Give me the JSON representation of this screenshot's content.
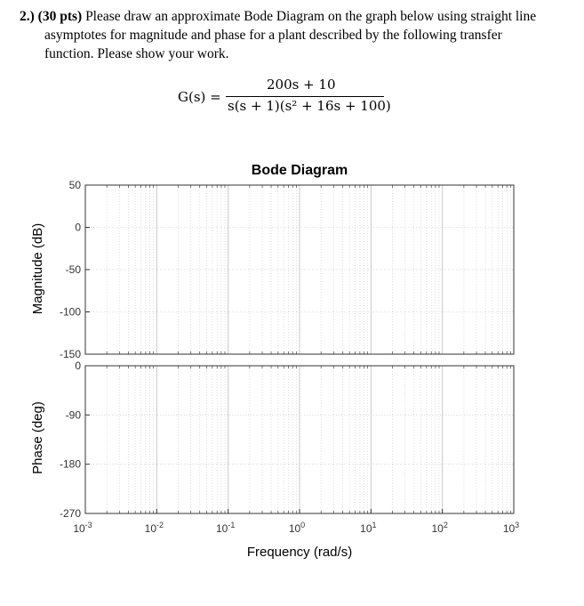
{
  "problem": {
    "number": "2.)",
    "points": "(30 pts)",
    "line1": "Please draw an approximate Bode Diagram on the graph below using straight line",
    "line2": "asymptotes for magnitude and phase for a plant described by the following transfer",
    "line3": "function. Please show your work."
  },
  "equation": {
    "lhs": "G(s) =",
    "numerator": "200s + 10",
    "denominator": "s(s + 1)(s² + 16s + 100)"
  },
  "chart_data": {
    "type": "line",
    "title": "Bode Diagram",
    "xlabel": "Frequency (rad/s)",
    "x_scale": "log",
    "xlim": [
      0.001,
      1000
    ],
    "x_ticks": [
      {
        "base": "10",
        "exp": "-3"
      },
      {
        "base": "10",
        "exp": "-2"
      },
      {
        "base": "10",
        "exp": "-1"
      },
      {
        "base": "10",
        "exp": "0"
      },
      {
        "base": "10",
        "exp": "1"
      },
      {
        "base": "10",
        "exp": "2"
      },
      {
        "base": "10",
        "exp": "3"
      }
    ],
    "grid": true,
    "magnitude": {
      "ylabel": "Magnitude (dB)",
      "ylim": [
        -150,
        50
      ],
      "y_ticks": [
        "50",
        "0",
        "-50",
        "-100",
        "-150"
      ]
    },
    "phase": {
      "ylabel": "Phase (deg)",
      "ylim": [
        -270,
        0
      ],
      "y_ticks": [
        "0",
        "-90",
        "-180",
        "-270"
      ]
    },
    "series": []
  }
}
